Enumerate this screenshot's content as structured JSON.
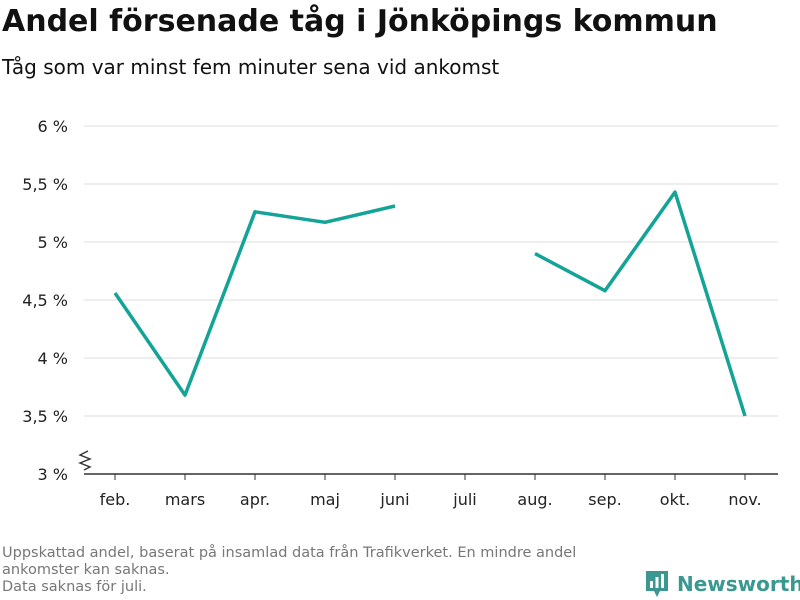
{
  "title": "Andel försenade tåg i Jönköpings kommun",
  "subtitle": "Tåg som var minst fem minuter sena vid ankomst",
  "footnote": {
    "line1": "Uppskattad andel, baserat på insamlad data från Trafikverket. En mindre andel ankomster kan saknas.",
    "line2": "Data saknas för juli."
  },
  "brand": {
    "name": "Newsworthy",
    "icon": "newsworthy-logo-icon",
    "color": "#3a9890"
  },
  "chart_data": {
    "type": "line",
    "title": "Andel försenade tåg i Jönköpings kommun",
    "subtitle": "Tåg som var minst fem minuter sena vid ankomst",
    "categories": [
      "feb.",
      "mars",
      "apr.",
      "maj",
      "juni",
      "juli",
      "aug.",
      "sep.",
      "okt.",
      "nov."
    ],
    "series": [
      {
        "values": [
          4.56,
          3.68,
          5.26,
          5.17,
          5.31,
          null,
          4.9,
          4.58,
          5.43,
          3.5
        ],
        "color": "#14a397"
      }
    ],
    "ylim": [
      3,
      6
    ],
    "yticks": [
      3,
      3.5,
      4,
      4.5,
      5,
      5.5,
      6
    ],
    "ytick_labels": [
      "3 %",
      "3,5 %",
      "4 %",
      "4,5 %",
      "5 %",
      "5,5 %",
      "6 %"
    ],
    "y_axis_break": true,
    "grid": true,
    "legend": "none"
  }
}
